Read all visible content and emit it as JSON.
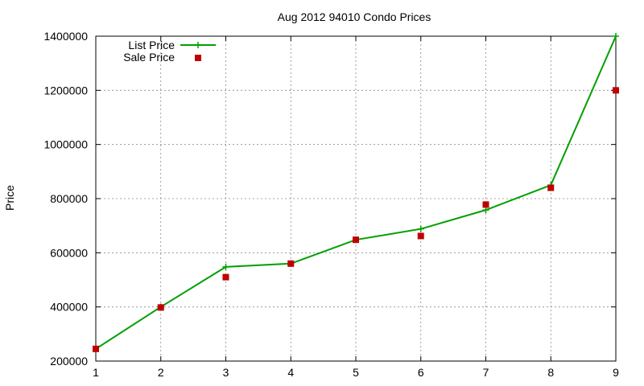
{
  "chart_data": {
    "type": "line",
    "title": "Aug 2012 94010 Condo Prices",
    "xlabel": "",
    "ylabel": "Price",
    "x": [
      1,
      2,
      3,
      4,
      5,
      6,
      7,
      8,
      9
    ],
    "xlim": [
      1,
      9
    ],
    "ylim": [
      200000,
      1400000
    ],
    "xticks": [
      "1",
      "2",
      "3",
      "4",
      "5",
      "6",
      "7",
      "8",
      "9"
    ],
    "yticks": [
      "200000",
      "400000",
      "600000",
      "800000",
      "1000000",
      "1200000",
      "1400000"
    ],
    "grid": true,
    "legend_position": "top-left",
    "series": [
      {
        "name": "List Price",
        "style": "line-with-plus-markers",
        "color": "#00a000",
        "values": [
          245000,
          400000,
          548000,
          560000,
          648000,
          688000,
          758000,
          850000,
          1400000
        ]
      },
      {
        "name": "Sale Price",
        "style": "square-markers",
        "color": "#c00000",
        "values": [
          245000,
          398000,
          510000,
          560000,
          648000,
          662000,
          778000,
          840000,
          1200000
        ]
      }
    ]
  }
}
